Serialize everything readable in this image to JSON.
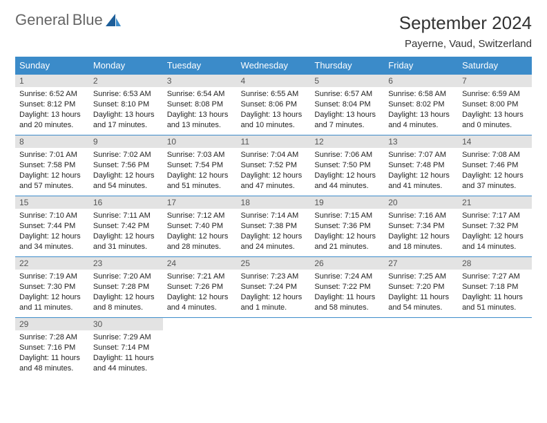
{
  "logo": {
    "text_general": "General",
    "text_blue": "Blue"
  },
  "title": "September 2024",
  "subtitle": "Payerne, Vaud, Switzerland",
  "header_bg": "#3b8bc9",
  "header_fg": "#ffffff",
  "daynum_bg": "#e3e3e3",
  "border_color": "#3b8bc9",
  "columns": [
    "Sunday",
    "Monday",
    "Tuesday",
    "Wednesday",
    "Thursday",
    "Friday",
    "Saturday"
  ],
  "days": [
    {
      "n": 1,
      "sr": "6:52 AM",
      "ss": "8:12 PM",
      "dl": "13 hours and 20 minutes."
    },
    {
      "n": 2,
      "sr": "6:53 AM",
      "ss": "8:10 PM",
      "dl": "13 hours and 17 minutes."
    },
    {
      "n": 3,
      "sr": "6:54 AM",
      "ss": "8:08 PM",
      "dl": "13 hours and 13 minutes."
    },
    {
      "n": 4,
      "sr": "6:55 AM",
      "ss": "8:06 PM",
      "dl": "13 hours and 10 minutes."
    },
    {
      "n": 5,
      "sr": "6:57 AM",
      "ss": "8:04 PM",
      "dl": "13 hours and 7 minutes."
    },
    {
      "n": 6,
      "sr": "6:58 AM",
      "ss": "8:02 PM",
      "dl": "13 hours and 4 minutes."
    },
    {
      "n": 7,
      "sr": "6:59 AM",
      "ss": "8:00 PM",
      "dl": "13 hours and 0 minutes."
    },
    {
      "n": 8,
      "sr": "7:01 AM",
      "ss": "7:58 PM",
      "dl": "12 hours and 57 minutes."
    },
    {
      "n": 9,
      "sr": "7:02 AM",
      "ss": "7:56 PM",
      "dl": "12 hours and 54 minutes."
    },
    {
      "n": 10,
      "sr": "7:03 AM",
      "ss": "7:54 PM",
      "dl": "12 hours and 51 minutes."
    },
    {
      "n": 11,
      "sr": "7:04 AM",
      "ss": "7:52 PM",
      "dl": "12 hours and 47 minutes."
    },
    {
      "n": 12,
      "sr": "7:06 AM",
      "ss": "7:50 PM",
      "dl": "12 hours and 44 minutes."
    },
    {
      "n": 13,
      "sr": "7:07 AM",
      "ss": "7:48 PM",
      "dl": "12 hours and 41 minutes."
    },
    {
      "n": 14,
      "sr": "7:08 AM",
      "ss": "7:46 PM",
      "dl": "12 hours and 37 minutes."
    },
    {
      "n": 15,
      "sr": "7:10 AM",
      "ss": "7:44 PM",
      "dl": "12 hours and 34 minutes."
    },
    {
      "n": 16,
      "sr": "7:11 AM",
      "ss": "7:42 PM",
      "dl": "12 hours and 31 minutes."
    },
    {
      "n": 17,
      "sr": "7:12 AM",
      "ss": "7:40 PM",
      "dl": "12 hours and 28 minutes."
    },
    {
      "n": 18,
      "sr": "7:14 AM",
      "ss": "7:38 PM",
      "dl": "12 hours and 24 minutes."
    },
    {
      "n": 19,
      "sr": "7:15 AM",
      "ss": "7:36 PM",
      "dl": "12 hours and 21 minutes."
    },
    {
      "n": 20,
      "sr": "7:16 AM",
      "ss": "7:34 PM",
      "dl": "12 hours and 18 minutes."
    },
    {
      "n": 21,
      "sr": "7:17 AM",
      "ss": "7:32 PM",
      "dl": "12 hours and 14 minutes."
    },
    {
      "n": 22,
      "sr": "7:19 AM",
      "ss": "7:30 PM",
      "dl": "12 hours and 11 minutes."
    },
    {
      "n": 23,
      "sr": "7:20 AM",
      "ss": "7:28 PM",
      "dl": "12 hours and 8 minutes."
    },
    {
      "n": 24,
      "sr": "7:21 AM",
      "ss": "7:26 PM",
      "dl": "12 hours and 4 minutes."
    },
    {
      "n": 25,
      "sr": "7:23 AM",
      "ss": "7:24 PM",
      "dl": "12 hours and 1 minute."
    },
    {
      "n": 26,
      "sr": "7:24 AM",
      "ss": "7:22 PM",
      "dl": "11 hours and 58 minutes."
    },
    {
      "n": 27,
      "sr": "7:25 AM",
      "ss": "7:20 PM",
      "dl": "11 hours and 54 minutes."
    },
    {
      "n": 28,
      "sr": "7:27 AM",
      "ss": "7:18 PM",
      "dl": "11 hours and 51 minutes."
    },
    {
      "n": 29,
      "sr": "7:28 AM",
      "ss": "7:16 PM",
      "dl": "11 hours and 48 minutes."
    },
    {
      "n": 30,
      "sr": "7:29 AM",
      "ss": "7:14 PM",
      "dl": "11 hours and 44 minutes."
    }
  ],
  "labels": {
    "sunrise": "Sunrise:",
    "sunset": "Sunset:",
    "daylight": "Daylight:"
  },
  "start_weekday": 0,
  "total_cells": 35
}
